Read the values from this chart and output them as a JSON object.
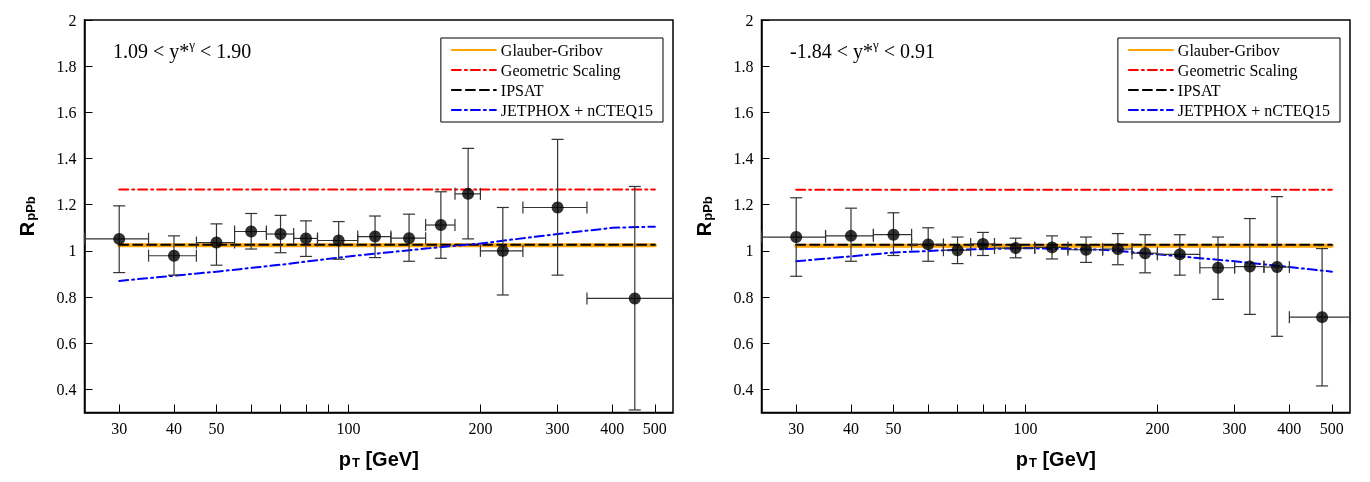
{
  "chart_data": [
    {
      "type": "scatter",
      "xlabel": "p$_{T}$ [GeV]",
      "ylabel": "R$_{pPb}$",
      "annotations": [
        "1.09 < y*$^{γ}$ < 1.90"
      ],
      "log": "x",
      "xlim": [
        25,
        550
      ],
      "xticks": [
        30,
        40,
        50,
        {
          "value": 60,
          "label": null
        },
        {
          "value": 70,
          "label": null
        },
        {
          "value": 80,
          "label": null
        },
        {
          "value": 90,
          "label": null
        },
        100,
        200,
        300,
        400,
        500
      ],
      "ylim": [
        0.3,
        2
      ],
      "yticks": [
        0.4,
        0.6,
        0.8,
        1,
        1.2,
        1.4,
        1.6,
        1.8,
        2
      ],
      "grid": false,
      "legend": "top right",
      "series": [
        {
          "name": "Glauber-Gribov",
          "type": "line",
          "color": "#ffa500",
          "line_style": "solid",
          "marker": "none",
          "x": [
            30,
            500
          ],
          "values": [
            1.024,
            1.024
          ]
        },
        {
          "name": "Geometric Scaling",
          "type": "line",
          "color": "#ff0000",
          "line_style": "dashdot",
          "marker": "none",
          "x": [
            30,
            500
          ],
          "values": [
            1.266,
            1.266
          ]
        },
        {
          "name": "IPSAT",
          "type": "line",
          "color": "#000000",
          "line_style": "dashed",
          "marker": "none",
          "x": [
            30,
            500
          ],
          "values": [
            1.027,
            1.027
          ]
        },
        {
          "name": "JETPHOX + nCTEQ15",
          "type": "line",
          "color": "#0000ff",
          "line_style": "dashdot",
          "marker": "none",
          "x": [
            30,
            50,
            70,
            100,
            150,
            200,
            300,
            400,
            500
          ],
          "values": [
            0.87,
            0.91,
            0.94,
            0.976,
            1.01,
            1.032,
            1.073,
            1.1,
            1.105
          ]
        },
        {
          "color": "#000000",
          "marker": "circle",
          "x": [
            30,
            40,
            50,
            60,
            70,
            80,
            95,
            115,
            137.5,
            162.5,
            187.5,
            225,
            300,
            450
          ],
          "values": [
            1.052,
            0.979,
            1.036,
            1.084,
            1.073,
            1.054,
            1.045,
            1.062,
            1.055,
            1.112,
            1.247,
            1.0,
            1.188,
            0.794
          ],
          "errors": [
            [
              0.906,
              1.195
            ],
            [
              0.895,
              1.065
            ],
            [
              0.938,
              1.117
            ],
            [
              1.008,
              1.162
            ],
            [
              0.992,
              1.154
            ],
            [
              0.976,
              1.13
            ],
            [
              0.964,
              1.127
            ],
            [
              0.971,
              1.151
            ],
            [
              0.955,
              1.159
            ],
            [
              0.968,
              1.256
            ],
            [
              1.052,
              1.444
            ],
            [
              0.809,
              1.188
            ],
            [
              0.895,
              1.483
            ],
            [
              0.311,
              1.279
            ]
          ],
          "xerrors": [
            [
              25,
              35
            ],
            [
              35,
              45
            ],
            [
              45,
              55
            ],
            [
              55,
              65
            ],
            [
              65,
              75
            ],
            [
              75,
              85
            ],
            [
              85,
              105
            ],
            [
              105,
              125
            ],
            [
              125,
              150
            ],
            [
              150,
              175
            ],
            [
              175,
              200
            ],
            [
              200,
              250
            ],
            [
              250,
              350
            ],
            [
              350,
              550
            ]
          ]
        }
      ]
    },
    {
      "type": "scatter",
      "xlabel": "p$_{T}$ [GeV]",
      "ylabel": "R$_{pPb}$",
      "annotations": [
        "-1.84 < y*$^{γ}$ < 0.91"
      ],
      "log": "x",
      "xlim": [
        25,
        550
      ],
      "xticks": [
        30,
        40,
        50,
        {
          "value": 60,
          "label": null
        },
        {
          "value": 70,
          "label": null
        },
        {
          "value": 80,
          "label": null
        },
        {
          "value": 90,
          "label": null
        },
        100,
        200,
        300,
        400,
        500
      ],
      "ylim": [
        0.3,
        2
      ],
      "yticks": [
        0.4,
        0.6,
        0.8,
        1,
        1.2,
        1.4,
        1.6,
        1.8,
        2
      ],
      "grid": false,
      "legend": "top right",
      "series": [
        {
          "name": "Glauber-Gribov",
          "type": "line",
          "color": "#ffa500",
          "line_style": "solid",
          "marker": "none",
          "x": [
            30,
            500
          ],
          "values": [
            1.022,
            1.022
          ]
        },
        {
          "name": "Geometric Scaling",
          "type": "line",
          "color": "#ff0000",
          "line_style": "dashdot",
          "marker": "none",
          "x": [
            30,
            500
          ],
          "values": [
            1.265,
            1.265
          ]
        },
        {
          "name": "IPSAT",
          "type": "line",
          "color": "#000000",
          "line_style": "dashed",
          "marker": "none",
          "x": [
            30,
            500
          ],
          "values": [
            1.027,
            1.027
          ]
        },
        {
          "name": "JETPHOX + nCTEQ15",
          "type": "line",
          "color": "#0000ff",
          "line_style": "dashdot",
          "marker": "none",
          "x": [
            30,
            50,
            70,
            100,
            150,
            200,
            300,
            400,
            500
          ],
          "values": [
            0.955,
            0.993,
            1.005,
            1.012,
            1.005,
            0.985,
            0.955,
            0.93,
            0.91
          ]
        },
        {
          "color": "#000000",
          "marker": "circle",
          "x": [
            30,
            40,
            50,
            60,
            70,
            80,
            95,
            115,
            137.5,
            162.5,
            187.5,
            225,
            275,
            325,
            375,
            475
          ],
          "values": [
            1.06,
            1.065,
            1.07,
            1.028,
            1.003,
            1.03,
            1.012,
            1.015,
            1.005,
            1.008,
            0.99,
            0.985,
            0.927,
            0.932,
            0.93,
            0.713
          ],
          "errors": [
            [
              0.89,
              1.23
            ],
            [
              0.955,
              1.185
            ],
            [
              0.98,
              1.165
            ],
            [
              0.955,
              1.1
            ],
            [
              0.945,
              1.06
            ],
            [
              0.98,
              1.08
            ],
            [
              0.97,
              1.055
            ],
            [
              0.965,
              1.065
            ],
            [
              0.95,
              1.06
            ],
            [
              0.94,
              1.075
            ],
            [
              0.905,
              1.07
            ],
            [
              0.895,
              1.07
            ],
            [
              0.79,
              1.06
            ],
            [
              0.725,
              1.14
            ],
            [
              0.63,
              1.235
            ],
            [
              0.415,
              1.01
            ]
          ],
          "xerrors": [
            [
              25,
              35
            ],
            [
              35,
              45
            ],
            [
              45,
              55
            ],
            [
              55,
              65
            ],
            [
              65,
              75
            ],
            [
              75,
              85
            ],
            [
              85,
              105
            ],
            [
              105,
              125
            ],
            [
              125,
              150
            ],
            [
              150,
              175
            ],
            [
              175,
              200
            ],
            [
              200,
              250
            ],
            [
              250,
              300
            ],
            [
              300,
              350
            ],
            [
              350,
              400
            ],
            [
              400,
              550
            ]
          ]
        }
      ]
    }
  ]
}
